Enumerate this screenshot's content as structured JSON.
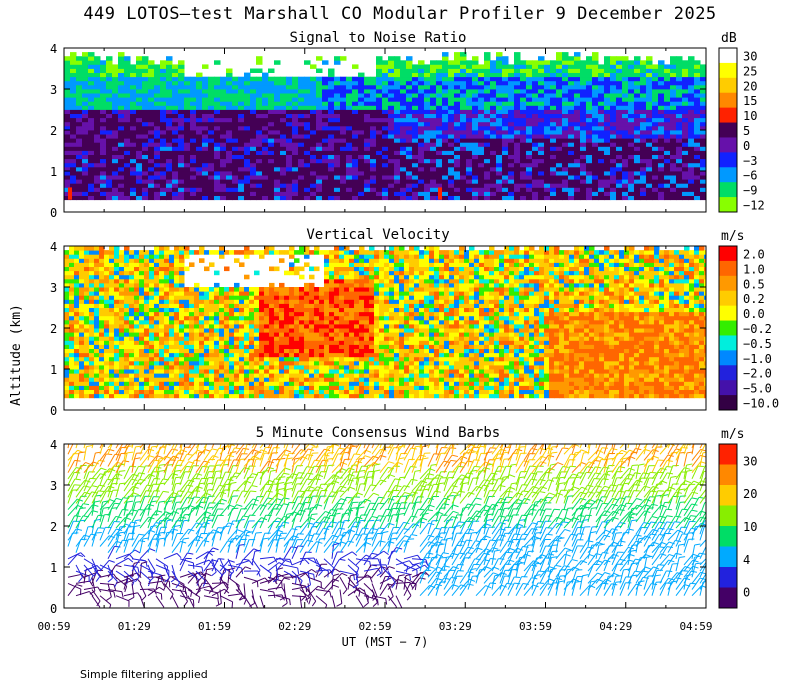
{
  "title": "449 LOTOS—test Marshall CO Modular Profiler  9 December 2025",
  "footnote": "Simple filtering applied",
  "chart_data": [
    {
      "type": "heatmap",
      "title": "Signal to Noise Ratio",
      "ylabel": "Altitude (km)",
      "ylim": [
        0,
        4
      ],
      "yticks": [
        "0",
        "1",
        "2",
        "3",
        "4"
      ],
      "colorbar_unit": "dB",
      "colorbar_labels": [
        "30",
        "25",
        "20",
        "15",
        "10",
        "5",
        "0",
        "−3",
        "−6",
        "−9",
        "−12"
      ],
      "colorbar_colors": [
        "#ffffff",
        "#ffff00",
        "#ffcc00",
        "#ff8800",
        "#ff2200",
        "#440055",
        "#6611aa",
        "#1122ff",
        "#0099ff",
        "#00dd66",
        "#88ff00"
      ],
      "layers": [
        {
          "bottom": 0.3,
          "top": 1.8,
          "description": "low SNR purple/blue",
          "value_db": 2
        },
        {
          "bottom": 1.8,
          "top": 2.5,
          "description": "purple band",
          "value_db": 4
        },
        {
          "bottom": 2.5,
          "top": 3.3,
          "description": "blue/cyan",
          "value_db": -4
        },
        {
          "bottom": 3.3,
          "top": 3.8,
          "description": "green edge",
          "value_db": -10
        }
      ]
    },
    {
      "type": "heatmap",
      "title": "Vertical Velocity",
      "ylabel": "Altitude (km)",
      "ylim": [
        0,
        4
      ],
      "yticks": [
        "0",
        "1",
        "2",
        "3",
        "4"
      ],
      "colorbar_unit": "m/s",
      "colorbar_labels": [
        "2.0",
        "1.0",
        "0.5",
        "0.2",
        "0.0",
        "−0.2",
        "−0.5",
        "−1.0",
        "−2.0",
        "−5.0",
        "−10.0"
      ],
      "colorbar_colors": [
        "#ff0000",
        "#ff6600",
        "#ff9900",
        "#ffcc00",
        "#ffff00",
        "#33ee00",
        "#00eedd",
        "#0088ff",
        "#2222dd",
        "#4411aa",
        "#330044"
      ]
    },
    {
      "type": "wind_barbs",
      "title": "5 Minute Consensus Wind Barbs",
      "ylabel": "Altitude (km)",
      "ylim": [
        0,
        4
      ],
      "yticks": [
        "0",
        "1",
        "2",
        "3",
        "4"
      ],
      "colorbar_unit": "m/s",
      "colorbar_labels": [
        "30",
        "20",
        "10",
        "4",
        "0"
      ],
      "colorbar_colors": [
        "#ff2200",
        "#ff8800",
        "#ffcc00",
        "#88ee00",
        "#00dd66",
        "#00aaff",
        "#2222dd",
        "#440066"
      ],
      "xlabel": "UT  (MST − 7)",
      "xticks": [
        "00:59",
        "01:29",
        "01:59",
        "02:29",
        "02:59",
        "03:29",
        "03:59",
        "04:29",
        "04:59"
      ],
      "speed_by_altitude": [
        {
          "alt_km": 0.5,
          "speed_ms": 3
        },
        {
          "alt_km": 1.5,
          "speed_ms": 5
        },
        {
          "alt_km": 2.5,
          "speed_ms": 12
        },
        {
          "alt_km": 3.5,
          "speed_ms": 18
        }
      ]
    }
  ]
}
